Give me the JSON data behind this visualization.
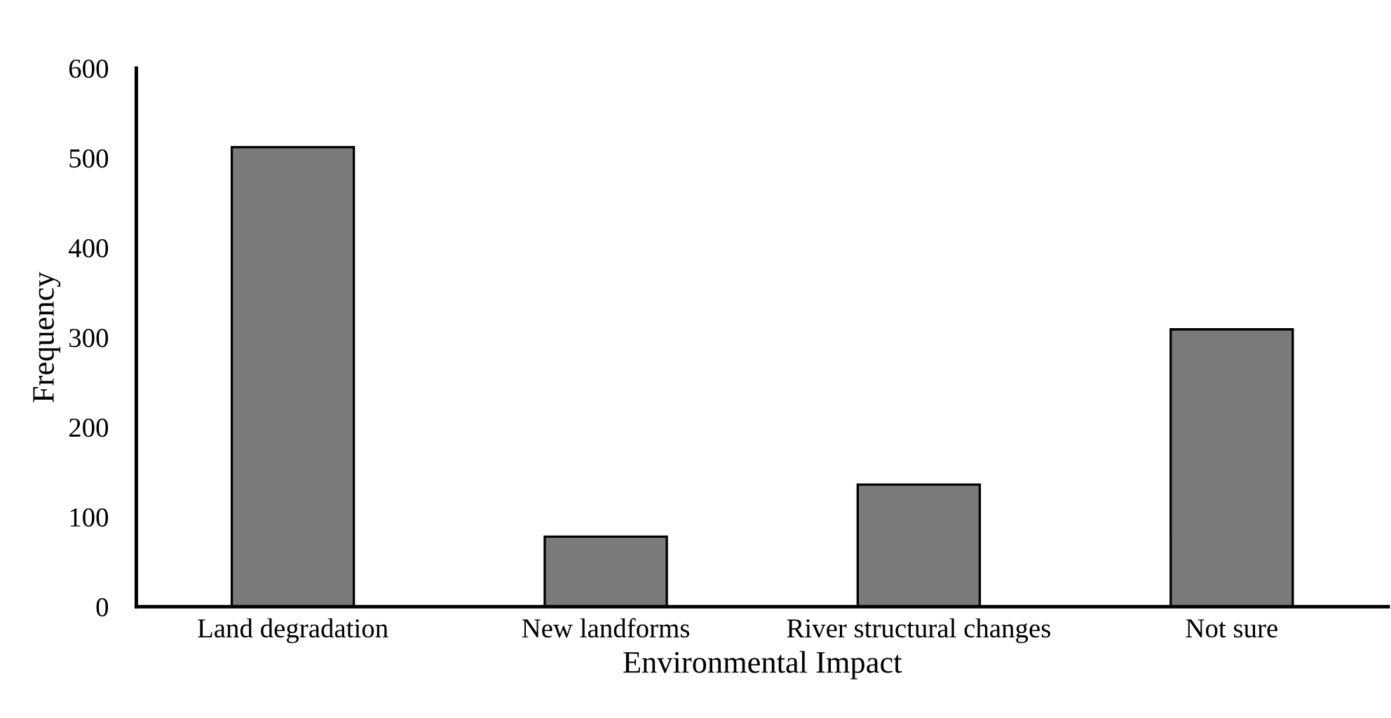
{
  "chart_data": {
    "type": "bar",
    "xlabel": "Environmental Impact",
    "ylabel": "Frequency",
    "categories": [
      "Land degradation",
      "New landforms",
      "River structural changes",
      "Not sure"
    ],
    "values": [
      512,
      78,
      136,
      309
    ],
    "color": "#7a7a7a",
    "ylim": [
      0,
      600
    ],
    "yticks": [
      0,
      100,
      200,
      300,
      400,
      500,
      600
    ],
    "grid": false,
    "legend": false
  }
}
